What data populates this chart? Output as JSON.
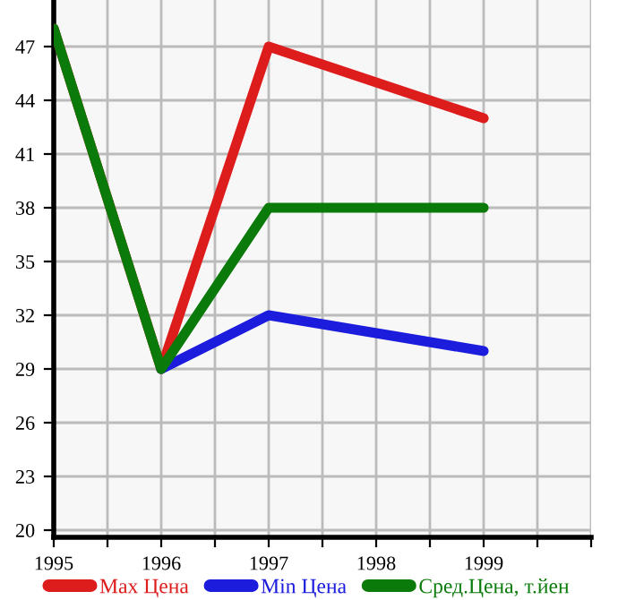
{
  "chart_data": {
    "type": "line",
    "x": [
      1995,
      1996,
      1997,
      1999
    ],
    "series": [
      {
        "name": "Max Цена",
        "color": "#dd1c1c",
        "values": [
          48,
          29,
          47,
          43
        ]
      },
      {
        "name": "Min Цена",
        "color": "#1c1cdd",
        "values": [
          null,
          29,
          32,
          30
        ]
      },
      {
        "name": "Сред.Цена, т.йен",
        "color": "#0a7a0a",
        "values": [
          48,
          29,
          38,
          38
        ]
      }
    ],
    "xlim": [
      1995,
      2000
    ],
    "ylim": [
      19.6,
      49.6
    ],
    "xticks": [
      1995,
      {
        "value": 1995.5,
        "label": null
      },
      1996,
      {
        "value": 1996.5,
        "label": null
      },
      1997,
      {
        "value": 1997.5,
        "label": null
      },
      1998,
      {
        "value": 1998.5,
        "label": null
      },
      1999,
      {
        "value": 1999.5,
        "label": null
      },
      {
        "value": 2000,
        "label": null
      }
    ],
    "yticks": [
      20,
      23,
      26,
      29,
      32,
      35,
      38,
      41,
      44,
      47
    ],
    "grid": true,
    "legend": "bottom",
    "marker": "none",
    "line_style": "solid"
  }
}
